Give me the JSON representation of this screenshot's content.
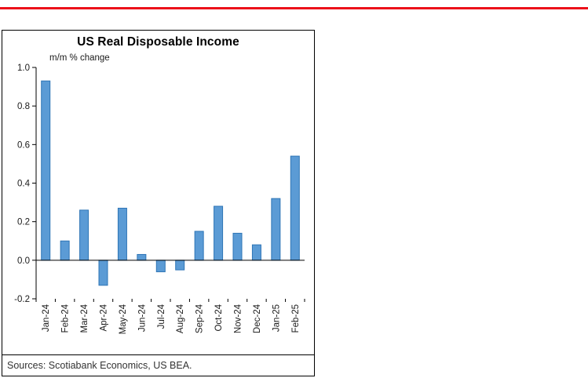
{
  "colors": {
    "top_border": "#ec111a",
    "bar_fill": "#5b9bd5",
    "bar_stroke": "#2e75b6",
    "axis": "#000000"
  },
  "chart": {
    "title": "US Real Disposable Income",
    "subtitle": "m/m % change",
    "source": "Sources: Scotiabank Economics, US BEA."
  },
  "chart_data": {
    "type": "bar",
    "title": "US Real Disposable Income",
    "ylabel": "m/m % change",
    "xlabel": "",
    "categories": [
      "Jan-24",
      "Feb-24",
      "Mar-24",
      "Apr-24",
      "May-24",
      "Jun-24",
      "Jul-24",
      "Aug-24",
      "Sep-24",
      "Oct-24",
      "Nov-24",
      "Dec-24",
      "Jan-25",
      "Feb-25"
    ],
    "values": [
      0.93,
      0.1,
      0.26,
      -0.13,
      0.27,
      0.03,
      -0.06,
      -0.05,
      0.15,
      0.28,
      0.14,
      0.08,
      0.32,
      0.54
    ],
    "ylim": [
      -0.2,
      1.0
    ],
    "yticks": [
      1.0,
      0.8,
      0.6,
      0.4,
      0.2,
      0.0,
      -0.2
    ],
    "grid": false,
    "legend": false,
    "bar_fill": "#5b9bd5",
    "bar_stroke": "#2e75b6",
    "source": "Sources: Scotiabank Economics, US BEA."
  }
}
